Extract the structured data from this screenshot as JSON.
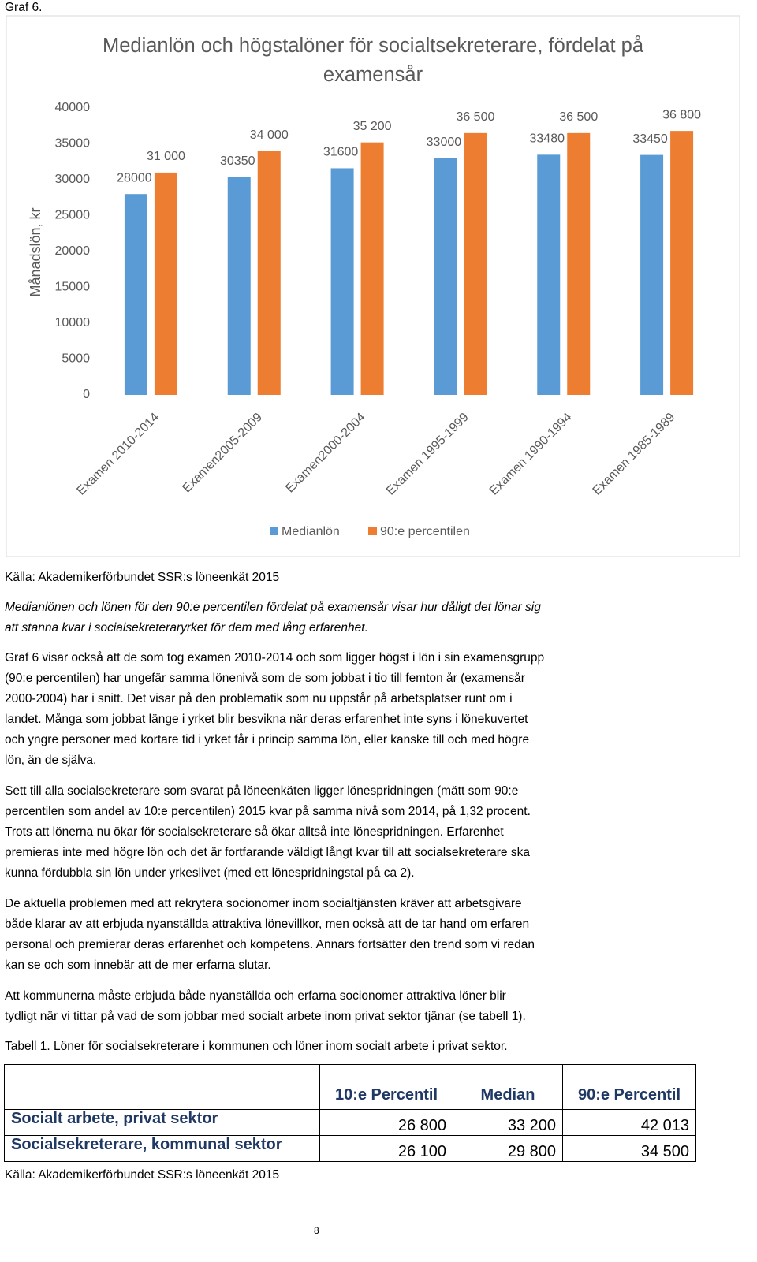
{
  "header": {
    "label": "Graf 6."
  },
  "chart_data": {
    "type": "bar",
    "title": "Medianlön och högstalöner för socialtsekreterare, fördelat på examensår",
    "ylabel": "Månadslön, kr",
    "categories": [
      "Examen 2010-2014",
      "Examen2005-2009",
      "Examen2000-2004",
      "Examen 1995-1999",
      "Examen 1990-1994",
      "Examen 1985-1989"
    ],
    "series": [
      {
        "name": "Medianlön",
        "color": "#5b9bd5",
        "values": [
          28000,
          30350,
          31600,
          33000,
          33480,
          33450
        ]
      },
      {
        "name": "90:e percentilen",
        "color": "#ed7d31",
        "values": [
          31000,
          34000,
          35200,
          36500,
          36500,
          36800
        ],
        "value_labels": [
          "31 000",
          "34 000",
          "35 200",
          "36 500",
          "36 500",
          "36 800"
        ]
      }
    ],
    "ylim": [
      0,
      40000
    ],
    "yticks": [
      0,
      5000,
      10000,
      15000,
      20000,
      25000,
      30000,
      35000,
      40000
    ],
    "grid": false,
    "legend": "bottom"
  },
  "source": "Källa: Akademikerförbundet SSR:s löneenkät 2015",
  "intro": [
    "Medianlönen och lönen för den 90:e percentilen fördelat på examensår visar hur dåligt det lönar sig",
    "att stanna kvar i socialsekreteraryrket för dem med lång erfarenhet."
  ],
  "paragraphs": [
    [
      "Graf 6 visar också att de som tog examen 2010-2014 och som ligger högst i lön i sin examensgrupp",
      "(90:e percentilen) har ungefär samma lönenivå som de som jobbat i tio till femton år (examensår",
      "2000-2004) har i snitt. Det visar på den problematik som nu uppstår på arbetsplatser runt om i",
      "landet. Många som jobbat länge i yrket blir besvikna när deras erfarenhet inte syns i lönekuvertet",
      "och yngre personer med kortare tid i yrket får i princip samma lön, eller kanske till och med högre",
      "lön, än de själva."
    ],
    [
      "Sett till alla socialsekreterare som svarat på löneenkäten ligger lönespridningen (mätt som 90:e",
      "percentilen som andel av 10:e percentilen) 2015 kvar på samma nivå som 2014, på 1,32 procent.",
      "Trots att lönerna nu ökar för socialsekreterare så ökar alltså inte lönespridningen. Erfarenhet",
      "premieras inte med högre lön och det är fortfarande väldigt långt kvar till att socialsekreterare ska",
      "kunna fördubbla sin lön under yrkeslivet (med ett lönespridningstal på ca 2)."
    ],
    [
      "De aktuella problemen med att rekrytera socionomer inom socialtjänsten kräver att arbetsgivare",
      "både klarar av att erbjuda nyanställda attraktiva lönevillkor, men också att de tar hand om erfaren",
      "personal och premierar deras erfarenhet och kompetens. Annars fortsätter den trend som vi redan",
      "kan se och som innebär att de mer erfarna slutar."
    ],
    [
      "Att kommunerna måste erbjuda både nyanställda och erfarna socionomer attraktiva löner blir",
      "tydligt när vi tittar på vad de som jobbar med socialt arbete inom privat sektor tjänar (se tabell 1)."
    ]
  ],
  "table": {
    "caption": "Tabell 1. Löner för socialsekreterare i kommunen och löner inom socialt arbete i privat sektor.",
    "columns": [
      "10:e Percentil",
      "Median",
      "90:e Percentil"
    ],
    "rows": [
      [
        "Socialt arbete, privat sektor",
        "26 800",
        "33 200",
        "42 013"
      ],
      [
        "Socialsekreterare, kommunal sektor",
        "26 100",
        "29 800",
        "34 500"
      ]
    ],
    "source": "Källa: Akademikerförbundet SSR:s löneenkät 2015"
  },
  "page_number": "8"
}
